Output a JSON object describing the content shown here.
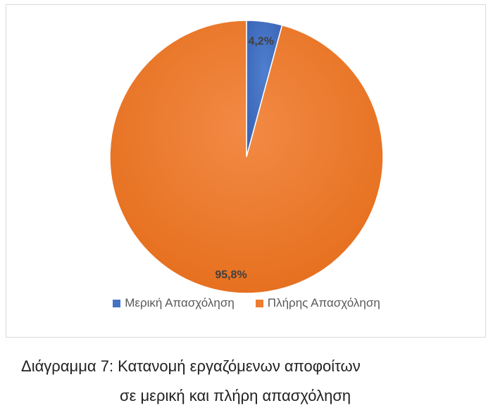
{
  "chart_data": {
    "type": "pie",
    "slices": [
      {
        "label": "Μερική Απασχόληση",
        "value": 4.2,
        "display": "4,2%",
        "color": "#4472C4"
      },
      {
        "label": "Πλήρης Απασχόληση",
        "value": 95.8,
        "display": "95,8%",
        "color": "#ED7D31"
      }
    ],
    "legend_position": "bottom"
  },
  "caption": {
    "line1": "Διάγραμμα 7: Κατανομή εργαζόμενων αποφοίτων",
    "line2": "σε μερική και πλήρη απασχόληση"
  }
}
